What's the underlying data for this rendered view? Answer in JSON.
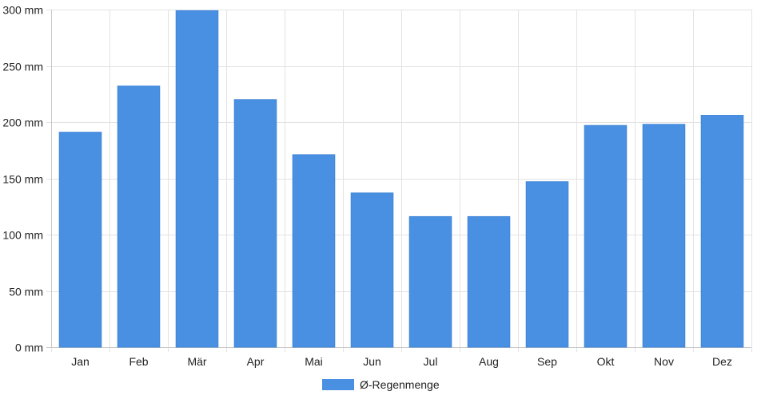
{
  "chart_data": {
    "type": "bar",
    "categories": [
      "Jan",
      "Feb",
      "Mär",
      "Apr",
      "Mai",
      "Jun",
      "Jul",
      "Aug",
      "Sep",
      "Okt",
      "Nov",
      "Dez"
    ],
    "series": [
      {
        "name": "Ø-Regenmenge",
        "values": [
          191,
          232,
          299,
          220,
          171,
          137,
          116,
          116,
          147,
          197,
          198,
          206
        ],
        "color": "#4a90e2"
      }
    ],
    "ylim": [
      0,
      300
    ],
    "yticks": [
      0,
      50,
      100,
      150,
      200,
      250,
      300
    ],
    "y_unit": "mm",
    "grid": true,
    "legend_position": "bottom-center"
  }
}
